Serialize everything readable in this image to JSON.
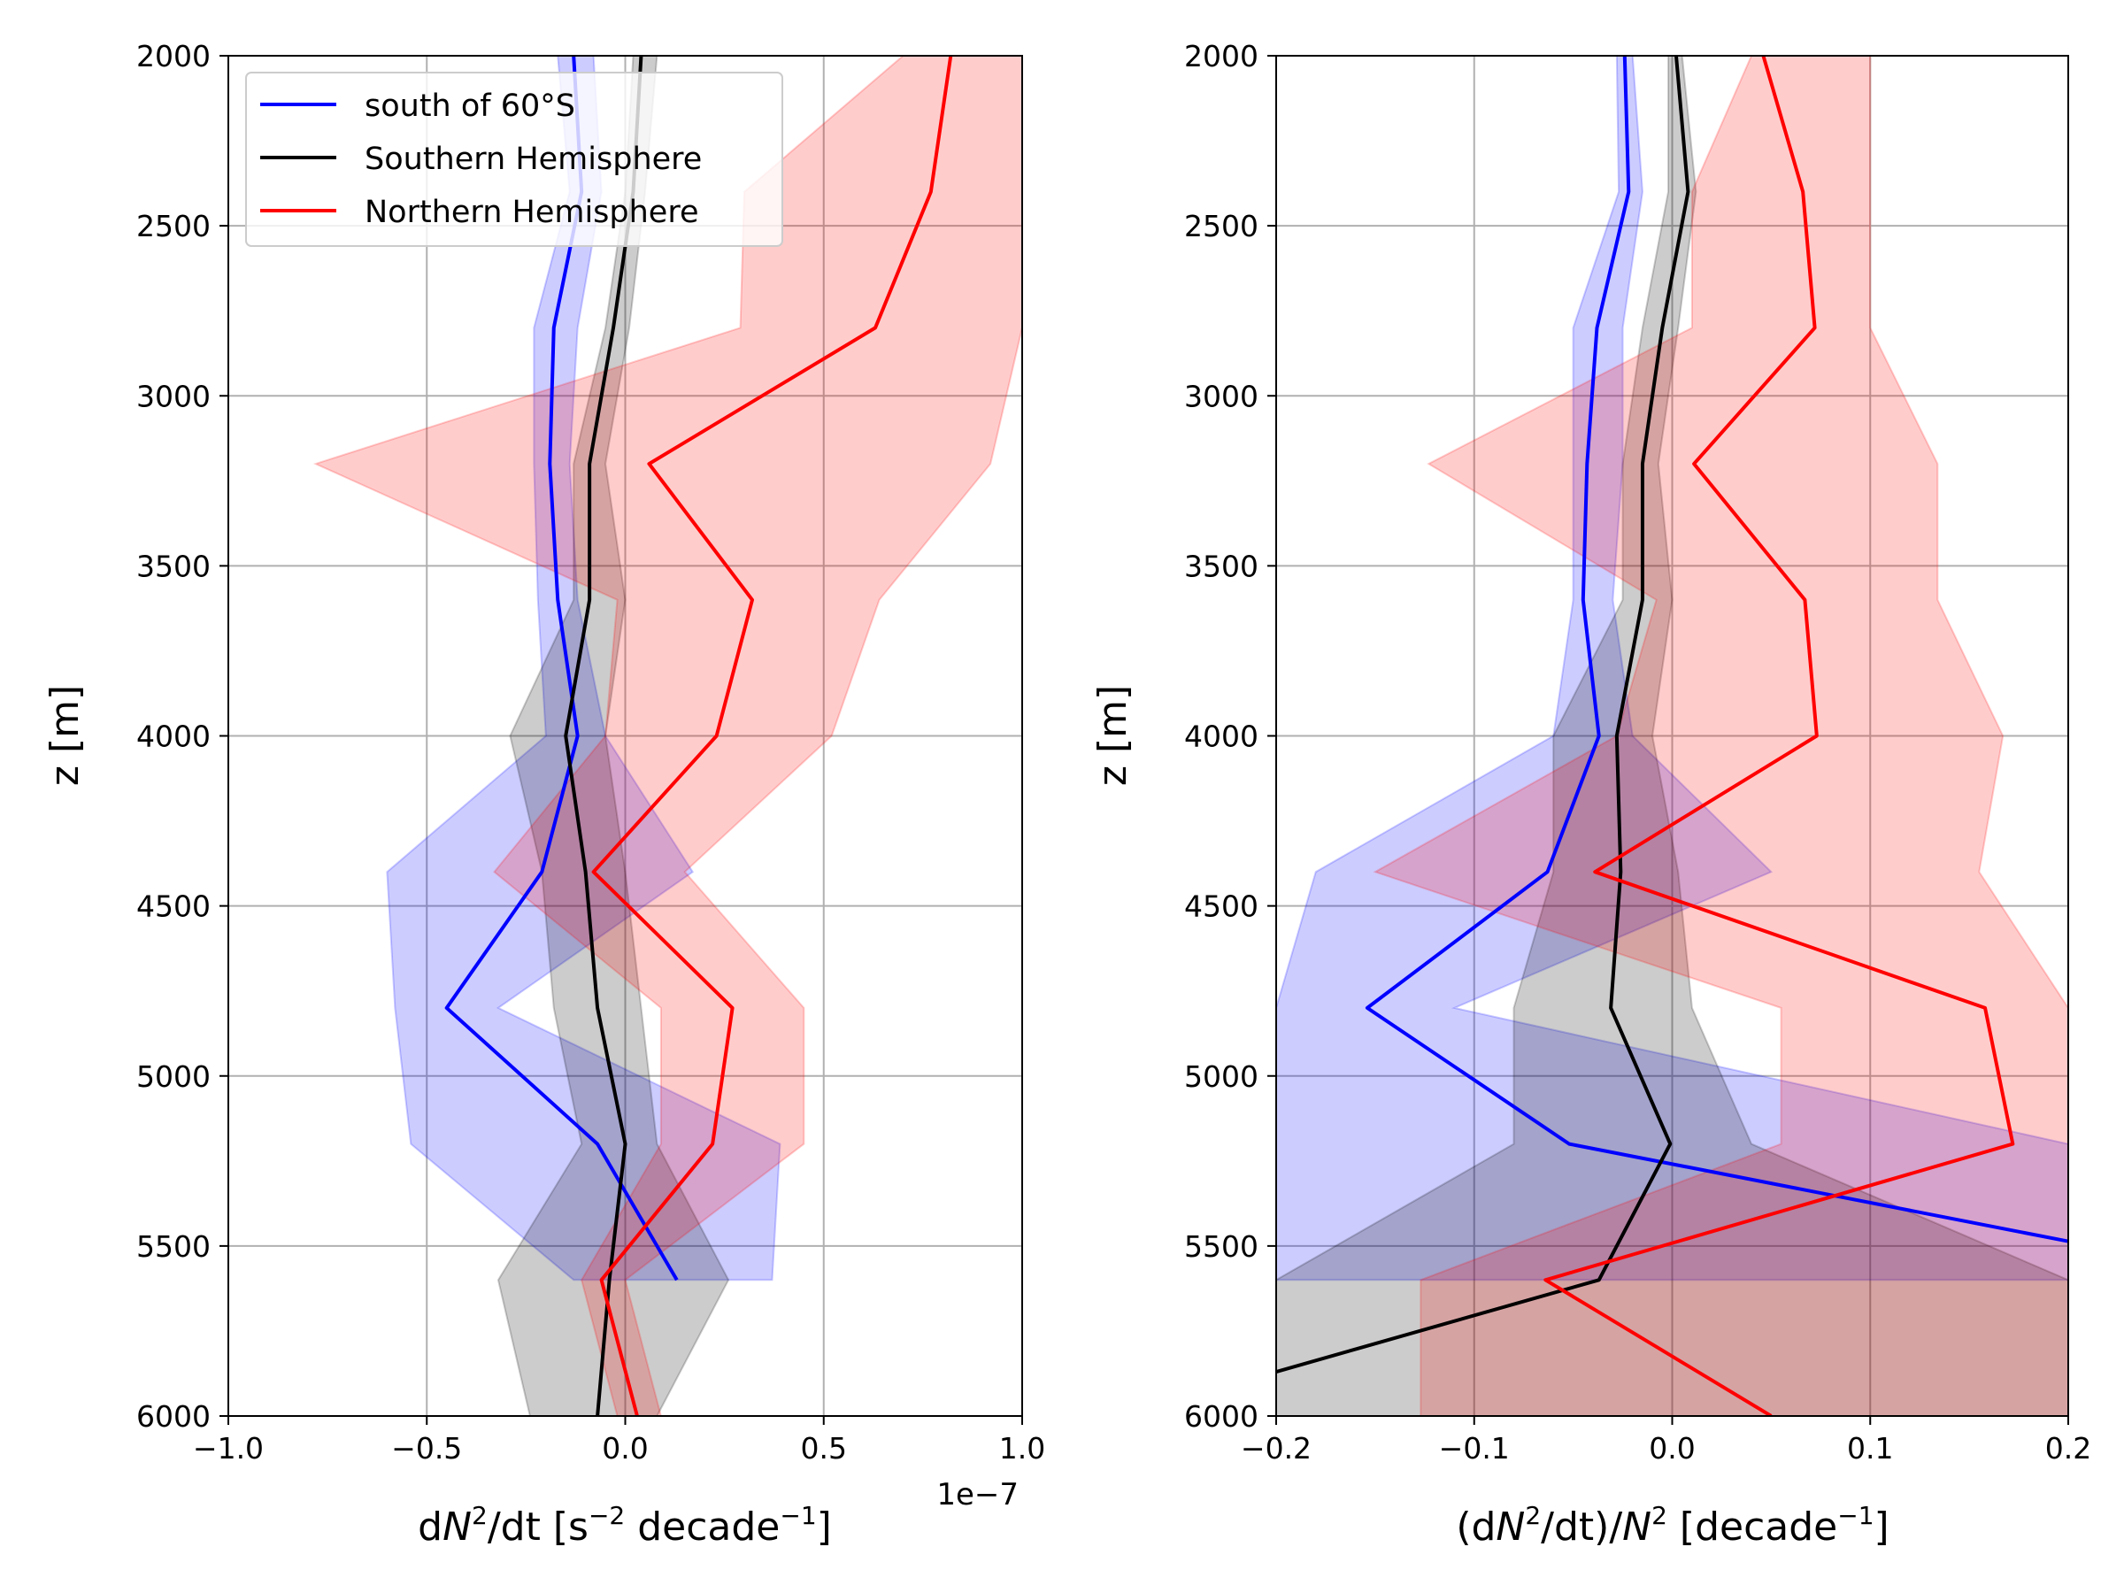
{
  "chart_data": [
    {
      "type": "line",
      "xlabel": "dN²/dt [s⁻² decade⁻¹]",
      "xlabel_parts": {
        "a": "d",
        "N": "N",
        "sq": "2",
        "b": "/dt [s",
        "neg2": "−2",
        "c": " decade",
        "neg1": "−1",
        "d": "]"
      },
      "offset_text": "1e−7",
      "ylabel": "z [m]",
      "xlim": [
        -1.0,
        1.0
      ],
      "ylim": [
        6000,
        2000
      ],
      "xticks": [
        -1.0,
        -0.5,
        0.0,
        0.5,
        1.0
      ],
      "xtick_labels": [
        "−1.0",
        "−0.5",
        "0.0",
        "0.5",
        "1.0"
      ],
      "yticks": [
        2000,
        2500,
        3000,
        3500,
        4000,
        4500,
        5000,
        5500,
        6000
      ],
      "ytick_labels": [
        "2000",
        "2500",
        "3000",
        "3500",
        "4000",
        "4500",
        "5000",
        "5500",
        "6000"
      ],
      "grid": true,
      "legend": {
        "position": "upper-left"
      },
      "series": [
        {
          "name": "south of 60°S",
          "color": "#0000ff",
          "points": [
            [
              -0.13,
              2000
            ],
            [
              -0.11,
              2400
            ],
            [
              -0.18,
              2800
            ],
            [
              -0.19,
              3200
            ],
            [
              -0.17,
              3600
            ],
            [
              -0.12,
              4000
            ],
            [
              -0.21,
              4400
            ],
            [
              -0.45,
              4800
            ],
            [
              -0.07,
              5200
            ],
            [
              0.13,
              5600
            ]
          ],
          "band": [
            [
              -0.17,
              -0.08,
              2000
            ],
            [
              -0.14,
              -0.06,
              2400
            ],
            [
              -0.23,
              -0.12,
              2800
            ],
            [
              -0.23,
              -0.14,
              3200
            ],
            [
              -0.22,
              -0.12,
              3600
            ],
            [
              -0.2,
              -0.05,
              4000
            ],
            [
              -0.6,
              0.17,
              4400
            ],
            [
              -0.58,
              -0.32,
              4800
            ],
            [
              -0.54,
              0.39,
              5200
            ],
            [
              -0.13,
              0.37,
              5600
            ]
          ]
        },
        {
          "name": "Southern Hemisphere",
          "color": "#000000",
          "points": [
            [
              0.04,
              2000
            ],
            [
              0.02,
              2400
            ],
            [
              -0.03,
              2800
            ],
            [
              -0.09,
              3200
            ],
            [
              -0.09,
              3600
            ],
            [
              -0.15,
              4000
            ],
            [
              -0.1,
              4400
            ],
            [
              -0.07,
              4800
            ],
            [
              0.0,
              5200
            ],
            [
              -0.04,
              5600
            ],
            [
              -0.07,
              6000
            ]
          ],
          "band": [
            [
              0.02,
              0.08,
              2000
            ],
            [
              0.0,
              0.05,
              2400
            ],
            [
              -0.05,
              0.01,
              2800
            ],
            [
              -0.13,
              -0.05,
              3200
            ],
            [
              -0.13,
              0.0,
              3600
            ],
            [
              -0.29,
              -0.05,
              4000
            ],
            [
              -0.21,
              0.0,
              4400
            ],
            [
              -0.18,
              0.04,
              4800
            ],
            [
              -0.11,
              0.08,
              5200
            ],
            [
              -0.32,
              0.26,
              5600
            ],
            [
              -0.24,
              0.08,
              6000
            ]
          ]
        },
        {
          "name": "Northern Hemisphere",
          "color": "#ff0000",
          "points": [
            [
              0.82,
              2000
            ],
            [
              0.77,
              2400
            ],
            [
              0.63,
              2800
            ],
            [
              0.06,
              3200
            ],
            [
              0.32,
              3600
            ],
            [
              0.23,
              4000
            ],
            [
              -0.08,
              4400
            ],
            [
              0.27,
              4800
            ],
            [
              0.22,
              5200
            ],
            [
              -0.06,
              5600
            ],
            [
              0.03,
              6000
            ]
          ],
          "band": [
            [
              0.7,
              1.0,
              2000
            ],
            [
              0.3,
              1.0,
              2400
            ],
            [
              0.29,
              1.0,
              2800
            ],
            [
              -0.78,
              0.92,
              3200
            ],
            [
              -0.02,
              0.64,
              3600
            ],
            [
              -0.05,
              0.52,
              4000
            ],
            [
              -0.33,
              0.15,
              4400
            ],
            [
              0.09,
              0.45,
              4800
            ],
            [
              0.09,
              0.45,
              5200
            ],
            [
              -0.11,
              0.0,
              5600
            ],
            [
              -0.02,
              0.09,
              6000
            ]
          ]
        }
      ]
    },
    {
      "type": "line",
      "xlabel": "(dN²/dt)/N² [decade⁻¹]",
      "xlabel_parts": {
        "a": "(d",
        "N": "N",
        "sq": "2",
        "b": "/dt)/",
        "N2": "N",
        "sq2": "2",
        "c": " [decade",
        "neg1": "−1",
        "d": "]"
      },
      "ylabel": "z [m]",
      "xlim": [
        -0.2,
        0.2
      ],
      "ylim": [
        6000,
        2000
      ],
      "xticks": [
        -0.2,
        -0.1,
        0.0,
        0.1,
        0.2
      ],
      "xtick_labels": [
        "−0.2",
        "−0.1",
        "0.0",
        "0.1",
        "0.2"
      ],
      "yticks": [
        2000,
        2500,
        3000,
        3500,
        4000,
        4500,
        5000,
        5500,
        6000
      ],
      "ytick_labels": [
        "2000",
        "2500",
        "3000",
        "3500",
        "4000",
        "4500",
        "5000",
        "5500",
        "6000"
      ],
      "grid": true,
      "series": [
        {
          "name": "south of 60°S",
          "color": "#0000ff",
          "points": [
            [
              -0.024,
              2000
            ],
            [
              -0.022,
              2400
            ],
            [
              -0.038,
              2800
            ],
            [
              -0.043,
              3200
            ],
            [
              -0.045,
              3600
            ],
            [
              -0.037,
              4000
            ],
            [
              -0.063,
              4400
            ],
            [
              -0.154,
              4800
            ],
            [
              -0.052,
              5200
            ],
            [
              0.3,
              5600
            ]
          ],
          "band": [
            [
              -0.028,
              -0.02,
              2000
            ],
            [
              -0.027,
              -0.015,
              2400
            ],
            [
              -0.05,
              -0.025,
              2800
            ],
            [
              -0.05,
              -0.025,
              3200
            ],
            [
              -0.05,
              -0.03,
              3600
            ],
            [
              -0.06,
              -0.02,
              4000
            ],
            [
              -0.18,
              0.05,
              4400
            ],
            [
              -0.2,
              -0.11,
              4800
            ],
            [
              -0.2,
              0.2,
              5200
            ],
            [
              -0.2,
              0.2,
              5600
            ]
          ]
        },
        {
          "name": "Southern Hemisphere",
          "color": "#000000",
          "points": [
            [
              0.002,
              2000
            ],
            [
              0.008,
              2400
            ],
            [
              -0.005,
              2800
            ],
            [
              -0.015,
              3200
            ],
            [
              -0.015,
              3600
            ],
            [
              -0.028,
              4000
            ],
            [
              -0.026,
              4400
            ],
            [
              -0.031,
              4800
            ],
            [
              -0.001,
              5200
            ],
            [
              -0.037,
              5600
            ],
            [
              -0.2,
              5870
            ]
          ],
          "band": [
            [
              -0.002,
              0.005,
              2000
            ],
            [
              -0.002,
              0.012,
              2400
            ],
            [
              -0.015,
              0.003,
              2800
            ],
            [
              -0.025,
              -0.007,
              3200
            ],
            [
              -0.025,
              0.0,
              3600
            ],
            [
              -0.06,
              -0.01,
              4000
            ],
            [
              -0.06,
              0.003,
              4400
            ],
            [
              -0.08,
              0.01,
              4800
            ],
            [
              -0.08,
              0.04,
              5200
            ],
            [
              -0.2,
              0.2,
              5600
            ],
            [
              -0.2,
              0.2,
              6000
            ]
          ]
        },
        {
          "name": "Northern Hemisphere",
          "color": "#ff0000",
          "points": [
            [
              0.046,
              2000
            ],
            [
              0.066,
              2400
            ],
            [
              0.072,
              2800
            ],
            [
              0.011,
              3200
            ],
            [
              0.067,
              3600
            ],
            [
              0.073,
              4000
            ],
            [
              -0.039,
              4400
            ],
            [
              0.158,
              4800
            ],
            [
              0.172,
              5200
            ],
            [
              -0.064,
              5600
            ],
            [
              0.05,
              6000
            ]
          ],
          "band": [
            [
              0.04,
              0.1,
              2000
            ],
            [
              0.01,
              0.1,
              2400
            ],
            [
              0.01,
              0.1,
              2800
            ],
            [
              -0.123,
              0.134,
              3200
            ],
            [
              -0.008,
              0.134,
              3600
            ],
            [
              -0.028,
              0.167,
              4000
            ],
            [
              -0.15,
              0.155,
              4400
            ],
            [
              0.055,
              0.2,
              4800
            ],
            [
              0.055,
              0.2,
              5200
            ],
            [
              -0.127,
              0.2,
              5600
            ],
            [
              -0.127,
              0.2,
              6000
            ]
          ]
        }
      ]
    }
  ]
}
